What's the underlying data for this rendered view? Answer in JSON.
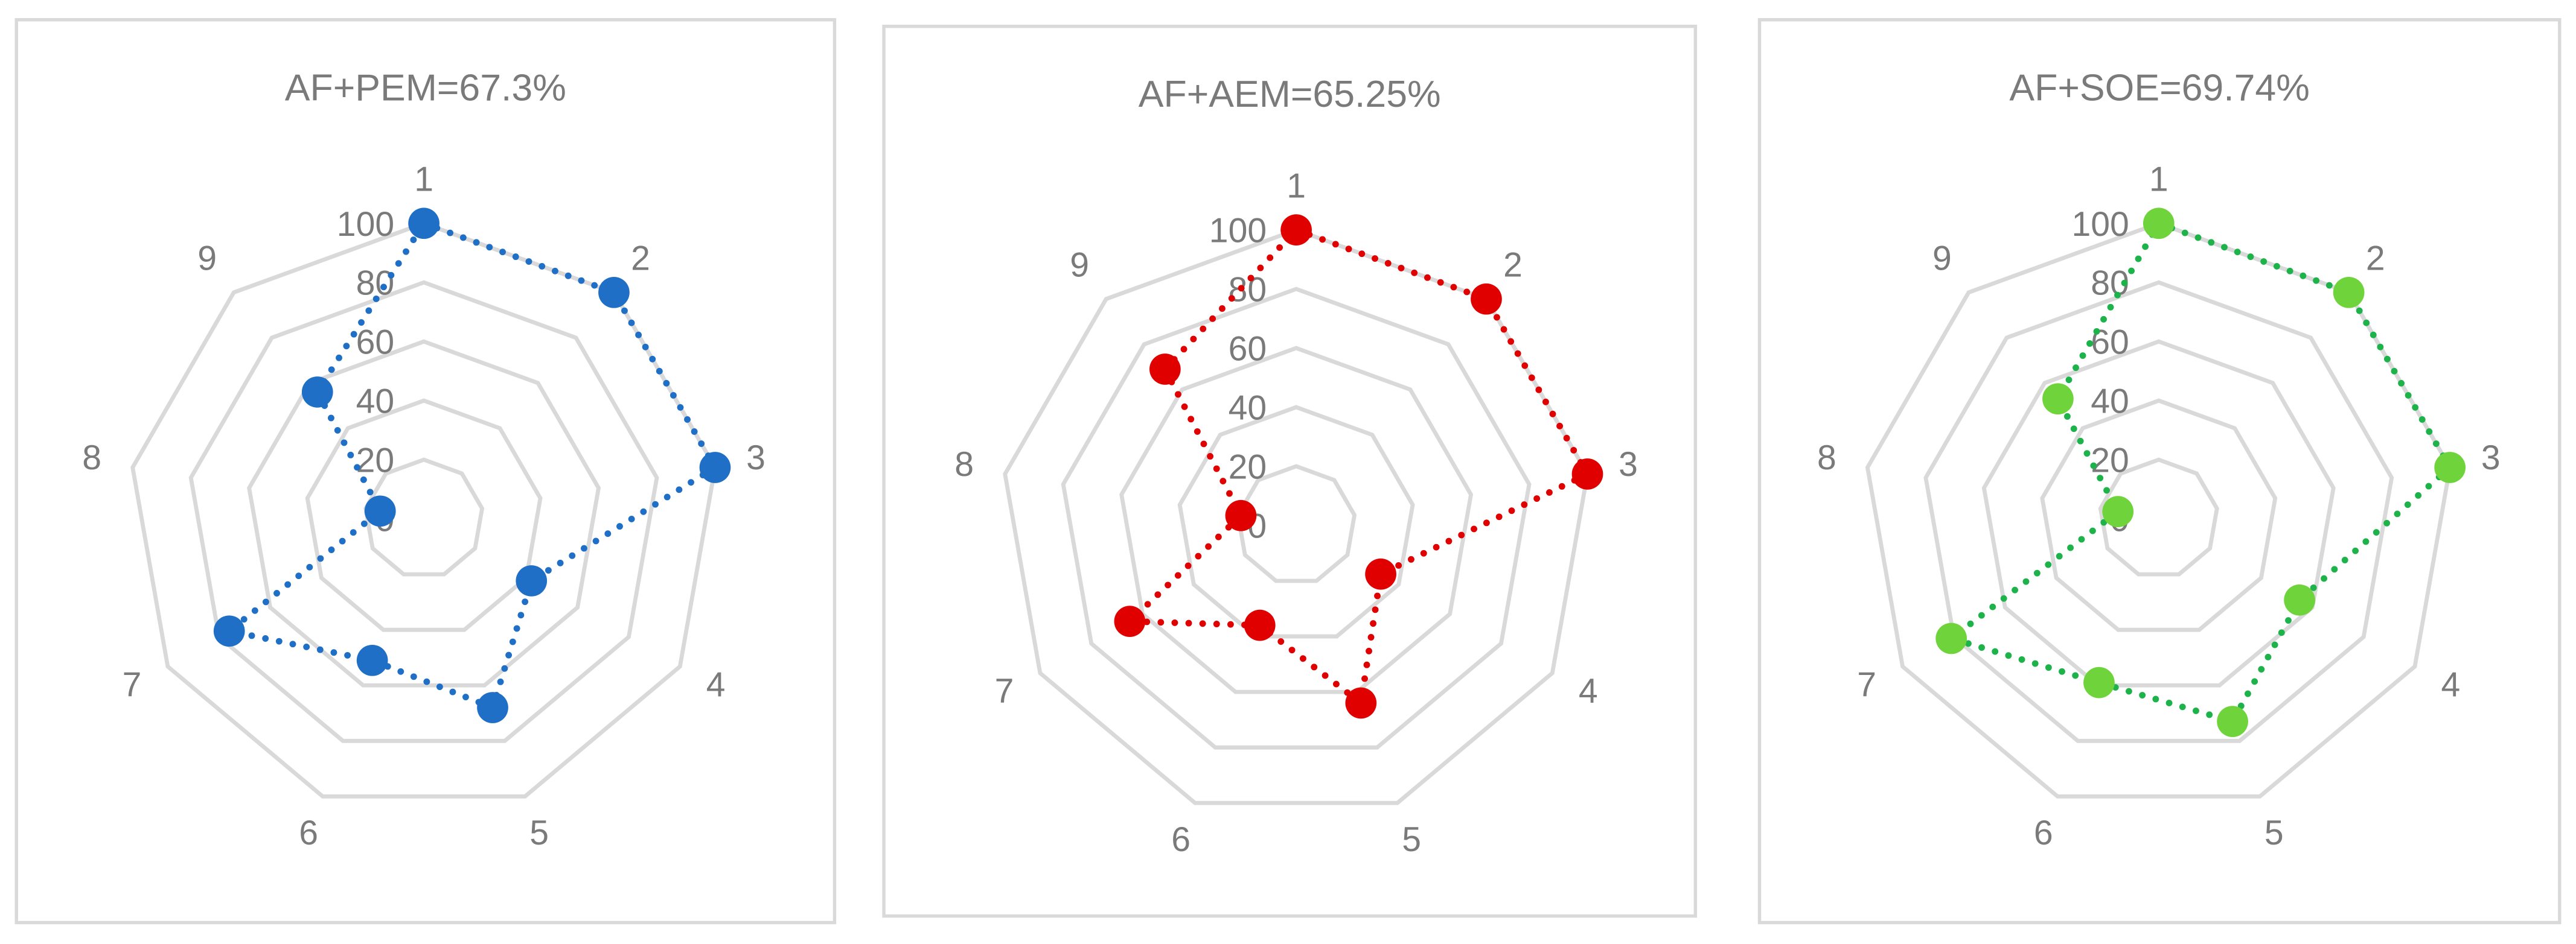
{
  "chart_data": [
    {
      "type": "radar",
      "title": "AF+PEM=67.3%",
      "categories": [
        "1",
        "2",
        "3",
        "4",
        "5",
        "6",
        "7",
        "8",
        "9"
      ],
      "values": [
        100,
        100,
        100,
        42,
        68,
        51,
        76,
        15,
        56
      ],
      "line_color": "#1f6fc6",
      "marker_color": "#1f6fc6",
      "ylim": [
        0,
        100
      ],
      "yticks": [
        0,
        20,
        40,
        60,
        80,
        100
      ],
      "grid": true
    },
    {
      "type": "radar",
      "title": "AF+AEM=65.25%",
      "categories": [
        "1",
        "2",
        "3",
        "4",
        "5",
        "6",
        "7",
        "8",
        "9"
      ],
      "values": [
        100,
        100,
        100,
        33,
        64,
        36,
        65,
        19,
        69
      ],
      "line_color": "#e00000",
      "marker_color": "#e00000",
      "ylim": [
        0,
        100
      ],
      "yticks": [
        0,
        20,
        40,
        60,
        80,
        100
      ],
      "grid": true
    },
    {
      "type": "radar",
      "title": "AF+SOE=69.74%",
      "categories": [
        "1",
        "2",
        "3",
        "4",
        "5",
        "6",
        "7",
        "8",
        "9"
      ],
      "values": [
        100,
        100,
        100,
        55,
        73,
        59,
        81,
        14,
        53
      ],
      "line_color": "#1db34a",
      "marker_color": "#6fd33c",
      "ylim": [
        0,
        100
      ],
      "yticks": [
        0,
        20,
        40,
        60,
        80,
        100
      ],
      "grid": true
    }
  ]
}
